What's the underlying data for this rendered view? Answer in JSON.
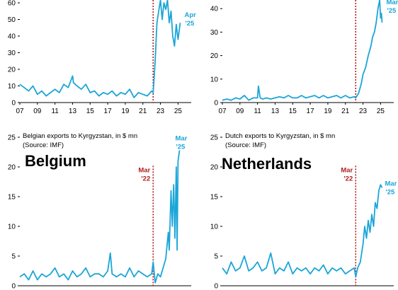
{
  "colors": {
    "series": "#1ba5d8",
    "event_line": "#b01e1e",
    "axis": "#000000"
  },
  "chart_data": [
    {
      "type": "line",
      "title": "",
      "source": "",
      "country_label": "",
      "xlabel": "",
      "ylabel": "",
      "xlim": [
        2007,
        2026.5
      ],
      "ylim": [
        0,
        60
      ],
      "yticks": [
        0,
        10,
        20,
        30,
        40,
        50,
        60
      ],
      "ytick_labels": [
        "0",
        "10",
        "20",
        "30",
        "40",
        "50",
        "60"
      ],
      "xticks": [
        2007,
        2009,
        2011,
        2013,
        2015,
        2017,
        2019,
        2021,
        2023,
        2025
      ],
      "xtick_labels": [
        "07",
        "09",
        "11",
        "13",
        "15",
        "17",
        "19",
        "21",
        "23",
        "25"
      ],
      "event_line": {
        "x": 2022.17,
        "label_line1": "",
        "label_line2": ""
      },
      "end_label": {
        "line1": "Apr",
        "line2": "'25"
      },
      "series": [
        {
          "x": [
            2007.0,
            2007.5,
            2008.0,
            2008.5,
            2009.0,
            2009.5,
            2010.0,
            2010.5,
            2011.0,
            2011.5,
            2012.0,
            2012.5,
            2013.0,
            2013.1,
            2013.5,
            2014.0,
            2014.5,
            2015.0,
            2015.5,
            2016.0,
            2016.5,
            2017.0,
            2017.5,
            2018.0,
            2018.5,
            2019.0,
            2019.5,
            2020.0,
            2020.5,
            2021.0,
            2021.5,
            2022.0,
            2022.17,
            2022.4,
            2022.6,
            2022.8,
            2023.0,
            2023.2,
            2023.4,
            2023.6,
            2023.8,
            2024.0,
            2024.2,
            2024.4,
            2024.6,
            2024.8,
            2025.0,
            2025.25
          ],
          "values": [
            11,
            9,
            7,
            10,
            5,
            7,
            4,
            6,
            8,
            6,
            11,
            9,
            16,
            12,
            10,
            8,
            11,
            6,
            7,
            4,
            6,
            5,
            7,
            4,
            6,
            5,
            8,
            3,
            6,
            5,
            4,
            7,
            6,
            25,
            48,
            55,
            62,
            50,
            60,
            56,
            62,
            48,
            55,
            40,
            34,
            47,
            38,
            48
          ]
        }
      ]
    },
    {
      "type": "line",
      "title": "",
      "source": "",
      "country_label": "",
      "xlabel": "",
      "ylabel": "",
      "xlim": [
        2007,
        2026.5
      ],
      "ylim": [
        0,
        50
      ],
      "yticks": [
        0,
        10,
        20,
        30,
        40
      ],
      "ytick_labels": [
        "0",
        "10",
        "20",
        "30",
        "40"
      ],
      "xticks": [
        2007,
        2009,
        2011,
        2013,
        2015,
        2017,
        2019,
        2021,
        2023,
        2025
      ],
      "xtick_labels": [
        "07",
        "09",
        "11",
        "13",
        "15",
        "17",
        "19",
        "21",
        "23",
        "25"
      ],
      "event_line": {
        "x": 2022.17,
        "label_line1": "",
        "label_line2": ""
      },
      "end_label": {
        "line1": "Mar",
        "line2": "'25"
      },
      "series": [
        {
          "x": [
            2007.0,
            2007.5,
            2008.0,
            2008.5,
            2009.0,
            2009.5,
            2010.0,
            2010.5,
            2011.0,
            2011.1,
            2011.3,
            2011.6,
            2012.0,
            2012.5,
            2013.0,
            2013.5,
            2014.0,
            2014.5,
            2015.0,
            2015.5,
            2016.0,
            2016.5,
            2017.0,
            2017.5,
            2018.0,
            2018.5,
            2019.0,
            2019.5,
            2020.0,
            2020.5,
            2021.0,
            2021.5,
            2022.0,
            2022.17,
            2022.5,
            2022.8,
            2023.0,
            2023.3,
            2023.6,
            2023.9,
            2024.1,
            2024.3,
            2024.5,
            2024.7,
            2024.9,
            2025.0,
            2025.1,
            2025.17
          ],
          "values": [
            1,
            1.5,
            1,
            2,
            1.5,
            3,
            1,
            2,
            2,
            7,
            2,
            1.5,
            2,
            1.5,
            2,
            2.5,
            2,
            3,
            2,
            2,
            3,
            2,
            2.5,
            3,
            2,
            3,
            2,
            2.5,
            3,
            2,
            3,
            2,
            2.5,
            2,
            4,
            8,
            12,
            15,
            20,
            24,
            28,
            30,
            34,
            40,
            44,
            36,
            38,
            34
          ]
        }
      ]
    },
    {
      "type": "line",
      "title": "Belgian exports to Kyrgyzstan, in $ mn",
      "source": "(Source: IMF)",
      "country_label": "Belgium",
      "xlabel": "",
      "ylabel": "",
      "xlim": [
        2007,
        2026.5
      ],
      "ylim": [
        0,
        25
      ],
      "yticks": [
        0,
        5,
        10,
        15,
        20,
        25
      ],
      "ytick_labels": [
        "0",
        "5",
        "10",
        "15",
        "20",
        "25"
      ],
      "xticks": [],
      "xtick_labels": [],
      "event_line": {
        "x": 2022.17,
        "label_line1": "Mar",
        "label_line2": "'22"
      },
      "end_label": {
        "line1": "Mar",
        "line2": "'25"
      },
      "series": [
        {
          "x": [
            2007.0,
            2007.5,
            2008.0,
            2008.5,
            2009.0,
            2009.5,
            2010.0,
            2010.5,
            2011.0,
            2011.5,
            2012.0,
            2012.5,
            2013.0,
            2013.5,
            2014.0,
            2014.5,
            2015.0,
            2015.5,
            2016.0,
            2016.5,
            2017.0,
            2017.3,
            2017.5,
            2018.0,
            2018.5,
            2019.0,
            2019.5,
            2020.0,
            2020.5,
            2021.0,
            2021.5,
            2022.0,
            2022.17,
            2022.4,
            2022.7,
            2023.0,
            2023.3,
            2023.6,
            2023.9,
            2024.0,
            2024.2,
            2024.35,
            2024.5,
            2024.65,
            2024.8,
            2024.9,
            2025.0,
            2025.17
          ],
          "values": [
            1.5,
            2,
            1,
            2.5,
            1,
            2,
            1.5,
            2,
            3,
            1.5,
            2,
            1,
            2.5,
            1.5,
            2,
            3,
            1.5,
            2,
            2,
            1.5,
            2.5,
            5.5,
            2,
            1.5,
            2,
            1.5,
            3,
            1.5,
            2.5,
            2,
            1.5,
            2,
            4,
            0.5,
            2,
            1.5,
            3,
            4.5,
            9,
            6,
            16,
            10,
            17,
            8,
            20,
            6,
            21,
            22.8
          ]
        }
      ]
    },
    {
      "type": "line",
      "title": "Dutch exports to Kyrgyzstan, in $ mn",
      "source": "(Source: IMF)",
      "country_label": "Netherlands",
      "xlabel": "",
      "ylabel": "",
      "xlim": [
        2007,
        2026.5
      ],
      "ylim": [
        0,
        25
      ],
      "yticks": [
        0,
        5,
        10,
        15,
        20,
        25
      ],
      "ytick_labels": [
        "0",
        "5",
        "10",
        "15",
        "20",
        "25"
      ],
      "xticks": [],
      "xtick_labels": [],
      "event_line": {
        "x": 2022.17,
        "label_line1": "Mar",
        "label_line2": "'22"
      },
      "end_label": {
        "line1": "Mar",
        "line2": "'25"
      },
      "series": [
        {
          "x": [
            2007.0,
            2007.5,
            2008.0,
            2008.5,
            2009.0,
            2009.5,
            2010.0,
            2010.5,
            2011.0,
            2011.5,
            2012.0,
            2012.5,
            2013.0,
            2013.5,
            2014.0,
            2014.5,
            2015.0,
            2015.5,
            2016.0,
            2016.5,
            2017.0,
            2017.5,
            2018.0,
            2018.5,
            2019.0,
            2019.5,
            2020.0,
            2020.5,
            2021.0,
            2021.5,
            2022.0,
            2022.17,
            2022.4,
            2022.7,
            2023.0,
            2023.2,
            2023.4,
            2023.6,
            2023.8,
            2024.0,
            2024.2,
            2024.4,
            2024.6,
            2024.8,
            2025.0,
            2025.17
          ],
          "values": [
            3,
            2,
            4,
            2.5,
            3,
            5,
            2.5,
            3,
            4,
            2.5,
            3,
            5.5,
            2,
            3,
            2.5,
            4,
            2,
            3,
            2.5,
            3,
            2,
            3,
            2.5,
            3.5,
            2,
            3,
            2.5,
            3,
            2,
            2.5,
            3,
            1.5,
            3,
            4,
            7,
            10,
            8,
            11,
            9,
            12,
            10,
            14,
            13,
            16,
            17,
            16.5
          ]
        }
      ]
    }
  ]
}
